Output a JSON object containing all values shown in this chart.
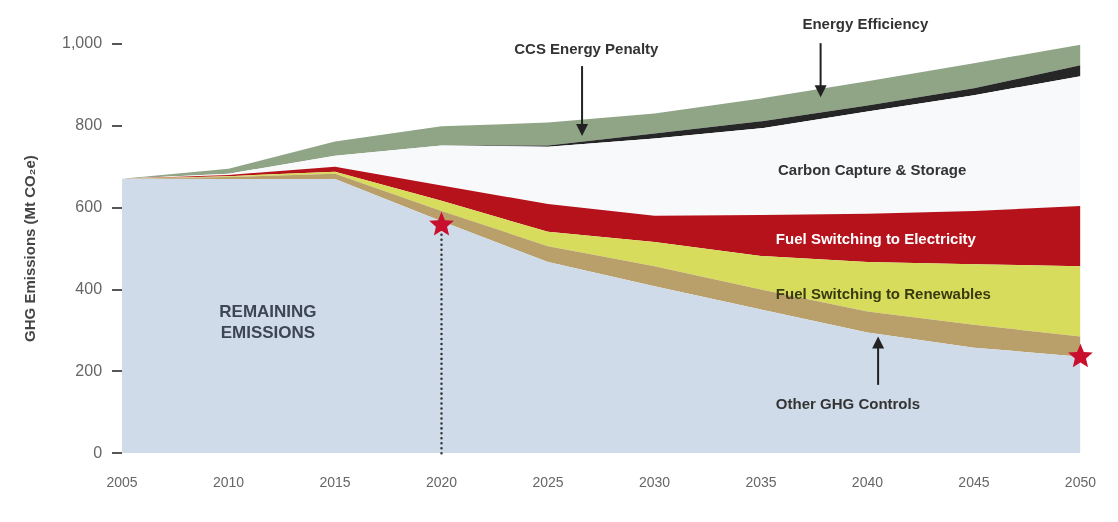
{
  "chart_data": {
    "type": "area",
    "stacked": true,
    "grid": false,
    "ylabel": "GHG Emissions (Mt CO₂e)",
    "x": [
      2005,
      2010,
      2015,
      2020,
      2025,
      2030,
      2035,
      2040,
      2045,
      2050
    ],
    "xlim": [
      2005,
      2050
    ],
    "xticks": [
      2005,
      2010,
      2015,
      2020,
      2025,
      2030,
      2035,
      2040,
      2045,
      2050
    ],
    "ylim": [
      0,
      1000
    ],
    "yticks": [
      0,
      200,
      400,
      600,
      800,
      {
        "value": 1000,
        "label": "1,000"
      }
    ],
    "series": [
      {
        "name": "REMAINING EMISSIONS",
        "color": "#cfdbe8",
        "values": [
          671,
          670,
          670,
          567,
          467,
          408,
          351,
          295,
          258,
          236
        ]
      },
      {
        "name": "Other GHG Controls",
        "color": "#b9a06b",
        "values": [
          0,
          5,
          13,
          25,
          39,
          49,
          49,
          51,
          56,
          49
        ]
      },
      {
        "name": "Fuel Switching to Renewables",
        "color": "#d8dc5c",
        "values": [
          0,
          2,
          5,
          25,
          35,
          59,
          82,
          121,
          148,
          172
        ]
      },
      {
        "name": "Fuel Switching to Electricity",
        "color": "#b5121b",
        "values": [
          0,
          3,
          12,
          37,
          68,
          64,
          100,
          118,
          130,
          147
        ]
      },
      {
        "name": "Carbon Capture & Storage",
        "color": "#f7f9fb",
        "values": [
          0,
          3,
          27,
          98,
          140,
          189,
          212,
          250,
          283,
          317
        ]
      },
      {
        "name": "CCS Energy Penalty",
        "color": "#262626",
        "values": [
          0,
          0,
          0,
          0,
          3,
          12,
          17,
          15,
          17,
          27
        ]
      },
      {
        "name": "Energy Efficiency",
        "color": "#8fa586",
        "values": [
          0,
          12,
          35,
          47,
          56,
          49,
          56,
          59,
          61,
          50
        ]
      },
      {
        "type": "line",
        "color": "#333333",
        "line_style": "dotted",
        "marker": "none",
        "x": [
          2020,
          2020
        ],
        "values": [
          0,
          558
        ]
      },
      {
        "type": "scatter",
        "color": "#c8102e",
        "marker": "star",
        "values": [
          null,
          null,
          null,
          558,
          null,
          null,
          null,
          null,
          null,
          236
        ]
      }
    ]
  }
}
